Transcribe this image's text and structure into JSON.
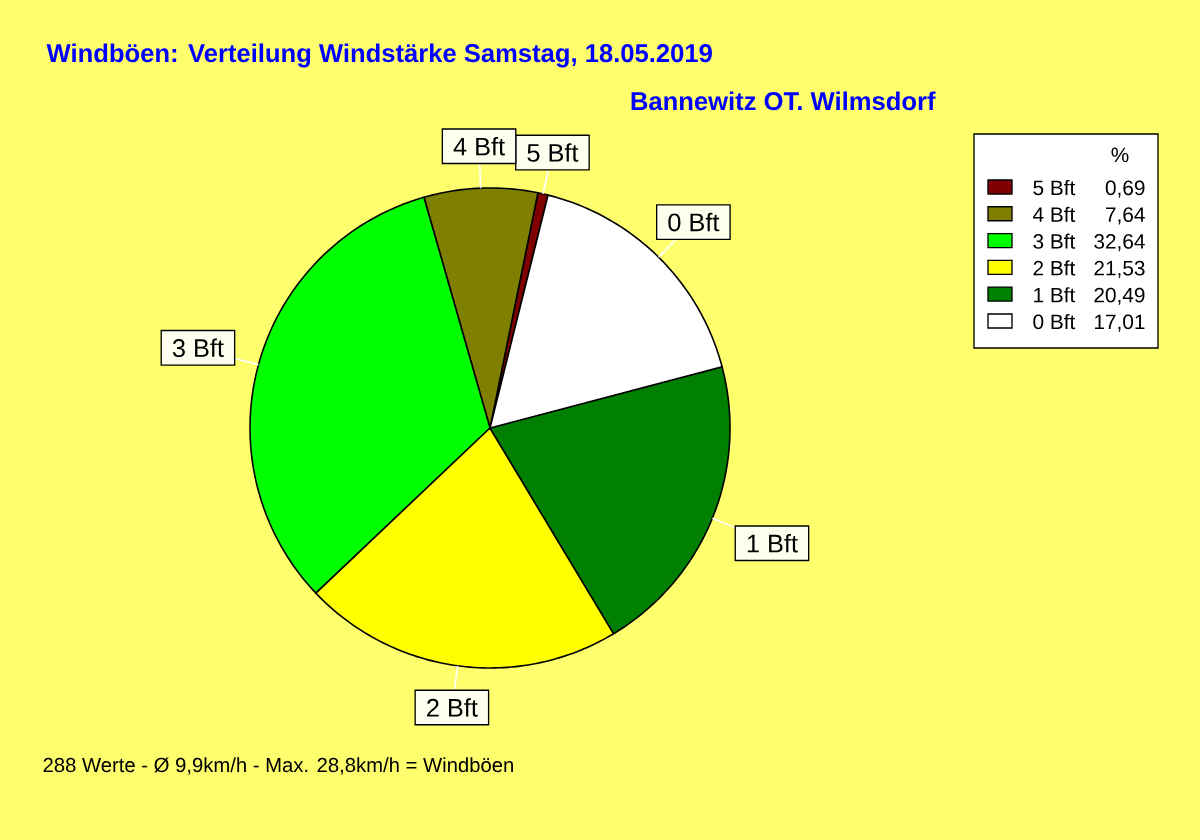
{
  "chart_data": {
    "type": "pie",
    "title": "Windböen: Verteilung Windstärke  Samstag, 18.05.2019",
    "subtitle": "Bannewitz OT. Wilmsdorf",
    "legend_title": "%",
    "categories": [
      "5 Bft",
      "4 Bft",
      "3 Bft",
      "2 Bft",
      "1 Bft",
      "0 Bft"
    ],
    "values": [
      0.69,
      7.64,
      32.64,
      21.53,
      20.49,
      17.01
    ],
    "value_labels": [
      "0,69",
      "7,64",
      "32,64",
      "21,53",
      "20,49",
      "17,01"
    ],
    "colors": [
      "#800000",
      "#808000",
      "#00ff00",
      "#ffff00",
      "#008000",
      "#ffffff"
    ],
    "legend": "top right",
    "annotations": [
      "288 Werte   -   Ø 9,9km/h  -  Max. 28,8km/h = Windböen"
    ]
  }
}
